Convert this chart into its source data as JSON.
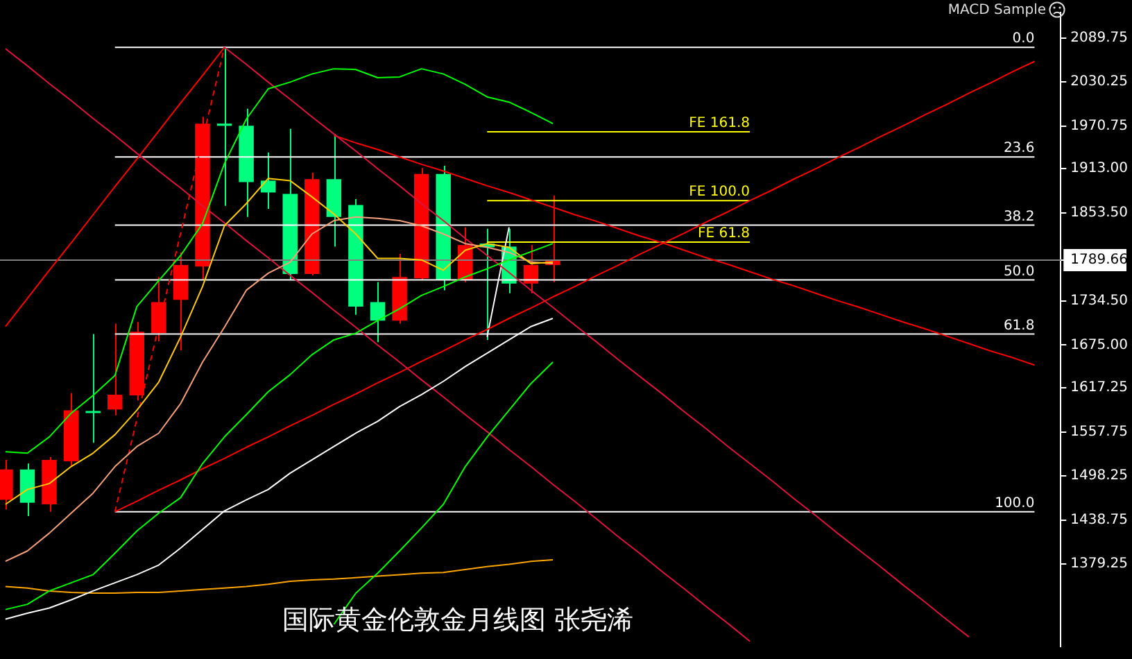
{
  "chart_data": {
    "type": "candlestick",
    "title": "国际黄金伦敦金月线图 张尧浠",
    "annotations": [
      "MACD Sample"
    ],
    "categories": [
      null,
      null,
      null,
      null,
      null,
      null,
      null,
      null,
      null,
      null,
      null,
      null,
      null,
      null,
      null,
      null,
      null,
      null,
      null,
      null,
      null,
      null,
      null,
      null,
      null,
      null,
      null,
      null,
      null,
      null,
      null,
      null,
      null,
      null,
      null,
      null,
      null,
      null,
      null,
      null,
      null,
      null,
      null,
      null,
      null,
      null,
      null,
      null
    ],
    "ohlc": [
      [
        1466,
        1520,
        1453,
        1507
      ],
      [
        1507,
        1515,
        1444,
        1462
      ],
      [
        1460,
        1524,
        1450,
        1520
      ],
      [
        1518,
        1610,
        1511,
        1587
      ],
      [
        1586,
        1690,
        1543,
        1584
      ],
      [
        1588,
        1704,
        1580,
        1608
      ],
      [
        1607,
        1706,
        1600,
        1693
      ],
      [
        1691,
        1767,
        1680,
        1733
      ],
      [
        1736,
        1800,
        1668,
        1783
      ],
      [
        1781,
        1983,
        1763,
        1974
      ],
      [
        1974,
        2077,
        1863,
        1971
      ],
      [
        1971,
        1994,
        1848,
        1895
      ],
      [
        1897,
        1935,
        1859,
        1881
      ],
      [
        1879,
        1967,
        1763,
        1771
      ],
      [
        1771,
        1908,
        1769,
        1899
      ],
      [
        1899,
        1960,
        1808,
        1848
      ],
      [
        1864,
        1872,
        1716,
        1727
      ],
      [
        1733,
        1760,
        1679,
        1708
      ],
      [
        1708,
        1798,
        1704,
        1767
      ],
      [
        1765,
        1914,
        1763,
        1906
      ],
      [
        1906,
        1917,
        1749,
        1763
      ],
      [
        1763,
        1834,
        1760,
        1810
      ],
      [
        1812,
        1832,
        1682,
        1807
      ],
      [
        1808,
        1832,
        1745,
        1758
      ],
      [
        1758,
        1810,
        1745,
        1783
      ],
      [
        1783,
        1877,
        1760,
        1790
      ],
      null,
      null,
      null,
      null,
      null,
      null,
      null,
      null,
      null,
      null,
      null,
      null,
      null,
      null,
      null,
      null,
      null,
      null,
      null,
      null,
      null,
      null
    ],
    "colors": [
      "#ff0000",
      "#00ff7f",
      "#ff0000",
      "#ff0000",
      "#00ff7f",
      "#ff0000",
      "#ff0000",
      "#ff0000",
      "#ff0000",
      "#ff0000",
      "#00ff7f",
      "#00ff7f",
      "#00ff7f",
      "#00ff7f",
      "#ff0000",
      "#00ff7f",
      "#00ff7f",
      "#00ff7f",
      "#ff0000",
      "#ff0000",
      "#00ff7f",
      "#ff0000",
      "#00ff7f",
      "#00ff7f",
      "#ff0000",
      "#ff0000",
      null,
      null,
      null,
      null,
      null,
      null,
      null,
      null,
      null,
      null,
      null,
      null,
      null,
      null,
      null,
      null,
      null,
      null,
      null,
      null,
      null,
      null
    ],
    "series": [
      {
        "type": "line",
        "color": "#00ff00",
        "values": [
          1531,
          1529,
          1551,
          1583,
          1607,
          1634,
          1727,
          1762,
          1796,
          1839,
          1920,
          1980,
          2021,
          2030,
          2041,
          2048,
          2047,
          2036,
          2037,
          2048,
          2041,
          2027,
          2010,
          2003,
          1989,
          1974,
          null,
          null,
          null,
          null,
          null,
          null,
          null,
          null,
          null,
          null,
          null,
          null,
          null,
          null,
          null,
          null,
          null,
          null,
          null,
          null,
          null,
          null
        ]
      },
      {
        "type": "line",
        "color": "#00ff00",
        "values": [
          1318,
          1325,
          1343,
          1354,
          1365,
          1394,
          1424,
          1448,
          1469,
          1515,
          1551,
          1581,
          1612,
          1635,
          1662,
          1682,
          1691,
          1708,
          1724,
          1742,
          1754,
          1767,
          1778,
          1790,
          1801,
          1812,
          null,
          null,
          null,
          null,
          null,
          null,
          null,
          null,
          null,
          null,
          null,
          null,
          null,
          null,
          null,
          null,
          null,
          null,
          null,
          null,
          null,
          null
        ]
      },
      {
        "type": "line",
        "color": "#00ff00",
        "values": [
          null,
          null,
          null,
          null,
          null,
          null,
          null,
          null,
          null,
          null,
          null,
          null,
          null,
          null,
          null,
          1298,
          1340,
          1367,
          1397,
          1428,
          1460,
          1511,
          1551,
          1587,
          1623,
          1652,
          null,
          null,
          null,
          null,
          null,
          null,
          null,
          null,
          null,
          null,
          null,
          null,
          null,
          null,
          null,
          null,
          null,
          null,
          null,
          null,
          null,
          null
        ]
      },
      {
        "type": "line",
        "color": "#ffcc00",
        "values": [
          1460,
          1480,
          1488,
          1511,
          1529,
          1554,
          1587,
          1625,
          1686,
          1754,
          1836,
          1866,
          1900,
          1897,
          1875,
          1852,
          1825,
          1792,
          1792,
          1790,
          1776,
          1803,
          1812,
          1807,
          1785,
          1787,
          null,
          null,
          null,
          null,
          null,
          null,
          null,
          null,
          null,
          null,
          null,
          null,
          null,
          null,
          null,
          null,
          null,
          null,
          null,
          null,
          null,
          null
        ]
      },
      {
        "type": "line",
        "color": "#f4a07a",
        "values": [
          1383,
          1397,
          1421,
          1448,
          1475,
          1511,
          1538,
          1556,
          1596,
          1652,
          1699,
          1749,
          1772,
          1787,
          1825,
          1843,
          1848,
          1846,
          1843,
          1836,
          1825,
          1812,
          1807,
          1800,
          1787,
          1785,
          null,
          null,
          null,
          null,
          null,
          null,
          null,
          null,
          null,
          null,
          null,
          null,
          null,
          null,
          null,
          null,
          null,
          null,
          null,
          null,
          null,
          null
        ]
      },
      {
        "type": "line",
        "color": "#ffffff",
        "values": [
          1305,
          1313,
          1320,
          1331,
          1343,
          1354,
          1365,
          1378,
          1401,
          1426,
          1451,
          1466,
          1480,
          1502,
          1520,
          1538,
          1556,
          1572,
          1592,
          1608,
          1626,
          1646,
          1664,
          1682,
          1700,
          1711,
          null,
          null,
          null,
          null,
          null,
          null,
          null,
          null,
          null,
          null,
          null,
          null,
          null,
          null,
          null,
          null,
          null,
          null,
          null,
          null,
          null,
          null
        ]
      },
      {
        "type": "line",
        "color": "#ffa500",
        "values": [
          1349,
          1347,
          1343,
          1341,
          1340,
          1340,
          1341,
          1341,
          1343,
          1345,
          1347,
          1349,
          1352,
          1356,
          1358,
          1359,
          1361,
          1363,
          1365,
          1367,
          1368,
          1372,
          1376,
          1379,
          1383,
          1385,
          null,
          null,
          null,
          null,
          null,
          null,
          null,
          null,
          null,
          null,
          null,
          null,
          null,
          null,
          null,
          null,
          null,
          null,
          null,
          null,
          null,
          null
        ]
      },
      {
        "type": "line",
        "color": "#dc143c",
        "values": [
          2075,
          2052,
          2028,
          2005,
          1981,
          1958,
          1934,
          1910,
          1887,
          1863,
          1840,
          1816,
          1793,
          1769,
          1746,
          1722,
          1699,
          1675,
          1652,
          1628,
          1605,
          1581,
          1558,
          1534,
          1511,
          1487,
          1464,
          1440,
          1416,
          1393,
          1369,
          1346,
          1322,
          1299,
          1275,
          null,
          null,
          null,
          null,
          null,
          null,
          null,
          null,
          null,
          null,
          null,
          null,
          null
        ]
      },
      {
        "type": "line",
        "color": "#dc143c",
        "values": [
          null,
          null,
          null,
          null,
          null,
          null,
          null,
          null,
          null,
          null,
          2077,
          2054,
          2030,
          2007,
          1983,
          1960,
          1937,
          1913,
          1890,
          1866,
          1843,
          1819,
          1796,
          1773,
          1749,
          1726,
          1702,
          1679,
          1655,
          1632,
          1609,
          1585,
          1562,
          1538,
          1515,
          1492,
          1468,
          1445,
          1421,
          1398,
          1375,
          1351,
          1328,
          1304,
          1281,
          null,
          null,
          null
        ]
      },
      {
        "type": "line",
        "color": "#ff0000",
        "values": [
          null,
          null,
          null,
          null,
          null,
          null,
          null,
          null,
          null,
          null,
          null,
          null,
          null,
          null,
          null,
          1958,
          1948,
          1939,
          1929,
          1919,
          1910,
          1900,
          1890,
          1881,
          1871,
          1861,
          1851,
          1842,
          1832,
          1822,
          1813,
          1803,
          1793,
          1784,
          1774,
          1764,
          1755,
          1745,
          1735,
          1726,
          1716,
          1706,
          1697,
          1687,
          1677,
          1667,
          1658,
          1648
        ]
      },
      {
        "type": "line",
        "color": "#ff0000",
        "values": [
          null,
          null,
          null,
          null,
          null,
          1450,
          1464,
          1479,
          1493,
          1508,
          1522,
          1537,
          1551,
          1566,
          1580,
          1595,
          1609,
          1624,
          1638,
          1653,
          1667,
          1682,
          1696,
          1711,
          1725,
          1740,
          1754,
          1769,
          1783,
          1798,
          1812,
          1826,
          1841,
          1855,
          1870,
          1884,
          1899,
          1913,
          1928,
          1942,
          1957,
          1971,
          1986,
          2000,
          2015,
          2029,
          2044,
          2058
        ]
      },
      {
        "type": "line",
        "color": "#ff0000",
        "values": [
          1700,
          1738,
          1776,
          1813,
          1851,
          1889,
          1926,
          1964,
          2002,
          2039,
          2077,
          null,
          null,
          null,
          null,
          null,
          null,
          null,
          null,
          null,
          null,
          null,
          null,
          null,
          null,
          null,
          null,
          null,
          null,
          null,
          null,
          null,
          null,
          null,
          null,
          null,
          null,
          null,
          null,
          null,
          null,
          null,
          null,
          null,
          null,
          null,
          null,
          null
        ]
      },
      {
        "type": "line",
        "color": "#ff0000",
        "line_style": "dashed",
        "values": [
          null,
          null,
          null,
          null,
          null,
          1450,
          1575,
          1701,
          1826,
          1952,
          2077,
          null,
          null,
          null,
          null,
          null,
          null,
          null,
          null,
          null,
          null,
          null,
          null,
          null,
          null,
          null,
          null,
          null,
          null,
          null,
          null,
          null,
          null,
          null,
          null,
          null,
          null,
          null,
          null,
          null,
          null,
          null,
          null,
          null,
          null,
          null,
          null,
          null
        ]
      },
      {
        "type": "line",
        "color": "#ffffff",
        "values": [
          null,
          null,
          null,
          null,
          null,
          null,
          null,
          null,
          null,
          null,
          null,
          null,
          null,
          null,
          null,
          null,
          null,
          null,
          null,
          null,
          null,
          null,
          1686,
          1834,
          null,
          null,
          null,
          null,
          null,
          null,
          null,
          null,
          null,
          null,
          null,
          null,
          null,
          null,
          null,
          null,
          null,
          null,
          null,
          null,
          null,
          null,
          null,
          null
        ]
      },
      {
        "type": "line",
        "name": "FE 161.8",
        "color": "#ffff00",
        "values": [
          null,
          null,
          null,
          null,
          null,
          null,
          null,
          null,
          null,
          null,
          null,
          null,
          null,
          null,
          null,
          null,
          null,
          null,
          null,
          null,
          null,
          null,
          1963,
          1963,
          1963,
          1963,
          1963,
          1963,
          1963,
          1963,
          1963,
          1963,
          1963,
          1963,
          1963,
          null,
          null,
          null,
          null,
          null,
          null,
          null,
          null,
          null,
          null,
          null,
          null,
          null
        ]
      },
      {
        "type": "line",
        "name": "FE 100.0",
        "color": "#ffff00",
        "values": [
          null,
          null,
          null,
          null,
          null,
          null,
          null,
          null,
          null,
          null,
          null,
          null,
          null,
          null,
          null,
          null,
          null,
          null,
          null,
          null,
          null,
          null,
          1870,
          1870,
          1870,
          1870,
          1870,
          1870,
          1870,
          1870,
          1870,
          1870,
          1870,
          1870,
          1870,
          null,
          null,
          null,
          null,
          null,
          null,
          null,
          null,
          null,
          null,
          null,
          null,
          null
        ]
      },
      {
        "type": "line",
        "name": "FE 61.8",
        "color": "#ffff00",
        "values": [
          null,
          null,
          null,
          null,
          null,
          null,
          null,
          null,
          null,
          null,
          null,
          null,
          null,
          null,
          null,
          null,
          null,
          null,
          null,
          null,
          null,
          null,
          1814,
          1814,
          1814,
          1814,
          1814,
          1814,
          1814,
          1814,
          1814,
          1814,
          1814,
          1814,
          1814,
          null,
          null,
          null,
          null,
          null,
          null,
          null,
          null,
          null,
          null,
          null,
          null,
          null
        ]
      },
      {
        "type": "line",
        "name": "0.0",
        "color": "#ffffff",
        "values": [
          null,
          null,
          null,
          null,
          null,
          2077,
          2077,
          2077,
          2077,
          2077,
          2077,
          2077,
          2077,
          2077,
          2077,
          2077,
          2077,
          2077,
          2077,
          2077,
          2077,
          2077,
          2077,
          2077,
          2077,
          2077,
          2077,
          2077,
          2077,
          2077,
          2077,
          2077,
          2077,
          2077,
          2077,
          2077,
          2077,
          2077,
          2077,
          2077,
          2077,
          2077,
          2077,
          2077,
          2077,
          2077,
          2077,
          2077
        ]
      },
      {
        "type": "line",
        "name": "23.6",
        "color": "#ffffff",
        "values": [
          null,
          null,
          null,
          null,
          null,
          1929,
          1929,
          1929,
          1929,
          1929,
          1929,
          1929,
          1929,
          1929,
          1929,
          1929,
          1929,
          1929,
          1929,
          1929,
          1929,
          1929,
          1929,
          1929,
          1929,
          1929,
          1929,
          1929,
          1929,
          1929,
          1929,
          1929,
          1929,
          1929,
          1929,
          1929,
          1929,
          1929,
          1929,
          1929,
          1929,
          1929,
          1929,
          1929,
          1929,
          1929,
          1929,
          1929
        ]
      },
      {
        "type": "line",
        "name": "38.2",
        "color": "#ffffff",
        "values": [
          null,
          null,
          null,
          null,
          null,
          1837,
          1837,
          1837,
          1837,
          1837,
          1837,
          1837,
          1837,
          1837,
          1837,
          1837,
          1837,
          1837,
          1837,
          1837,
          1837,
          1837,
          1837,
          1837,
          1837,
          1837,
          1837,
          1837,
          1837,
          1837,
          1837,
          1837,
          1837,
          1837,
          1837,
          1837,
          1837,
          1837,
          1837,
          1837,
          1837,
          1837,
          1837,
          1837,
          1837,
          1837,
          1837,
          1837
        ]
      },
      {
        "type": "line",
        "name": "50.0",
        "color": "#ffffff",
        "values": [
          null,
          null,
          null,
          null,
          null,
          1763,
          1763,
          1763,
          1763,
          1763,
          1763,
          1763,
          1763,
          1763,
          1763,
          1763,
          1763,
          1763,
          1763,
          1763,
          1763,
          1763,
          1763,
          1763,
          1763,
          1763,
          1763,
          1763,
          1763,
          1763,
          1763,
          1763,
          1763,
          1763,
          1763,
          1763,
          1763,
          1763,
          1763,
          1763,
          1763,
          1763,
          1763,
          1763,
          1763,
          1763,
          1763,
          1763
        ]
      },
      {
        "type": "line",
        "name": "61.8",
        "color": "#ffffff",
        "values": [
          null,
          null,
          null,
          null,
          null,
          1690,
          1690,
          1690,
          1690,
          1690,
          1690,
          1690,
          1690,
          1690,
          1690,
          1690,
          1690,
          1690,
          1690,
          1690,
          1690,
          1690,
          1690,
          1690,
          1690,
          1690,
          1690,
          1690,
          1690,
          1690,
          1690,
          1690,
          1690,
          1690,
          1690,
          1690,
          1690,
          1690,
          1690,
          1690,
          1690,
          1690,
          1690,
          1690,
          1690,
          1690,
          1690,
          1690
        ]
      },
      {
        "type": "line",
        "name": "100.0",
        "color": "#ffffff",
        "values": [
          null,
          null,
          null,
          null,
          null,
          1450,
          1450,
          1450,
          1450,
          1450,
          1450,
          1450,
          1450,
          1450,
          1450,
          1450,
          1450,
          1450,
          1450,
          1450,
          1450,
          1450,
          1450,
          1450,
          1450,
          1450,
          1450,
          1450,
          1450,
          1450,
          1450,
          1450,
          1450,
          1450,
          1450,
          1450,
          1450,
          1450,
          1450,
          1450,
          1450,
          1450,
          1450,
          1450,
          1450,
          1450,
          1450,
          1450
        ]
      }
    ],
    "ylim": [
      1268,
      2124
    ],
    "yticks": [
      2089.75,
      2030.25,
      1970.75,
      {
        "value": 1913,
        "label": "1913.00"
      },
      {
        "value": 1853.5,
        "label": "1853.50"
      },
      1789.66,
      {
        "value": 1734.5,
        "label": "1734.50"
      },
      {
        "value": 1675,
        "label": "1675.00"
      },
      1617.25,
      1557.75,
      1498.25,
      1438.75,
      1379.25
    ],
    "tick_labels": "y",
    "legend": "right",
    "ref_lines": [
      {
        "axis": "y",
        "value": 1789.66,
        "color": "#808080"
      }
    ]
  }
}
